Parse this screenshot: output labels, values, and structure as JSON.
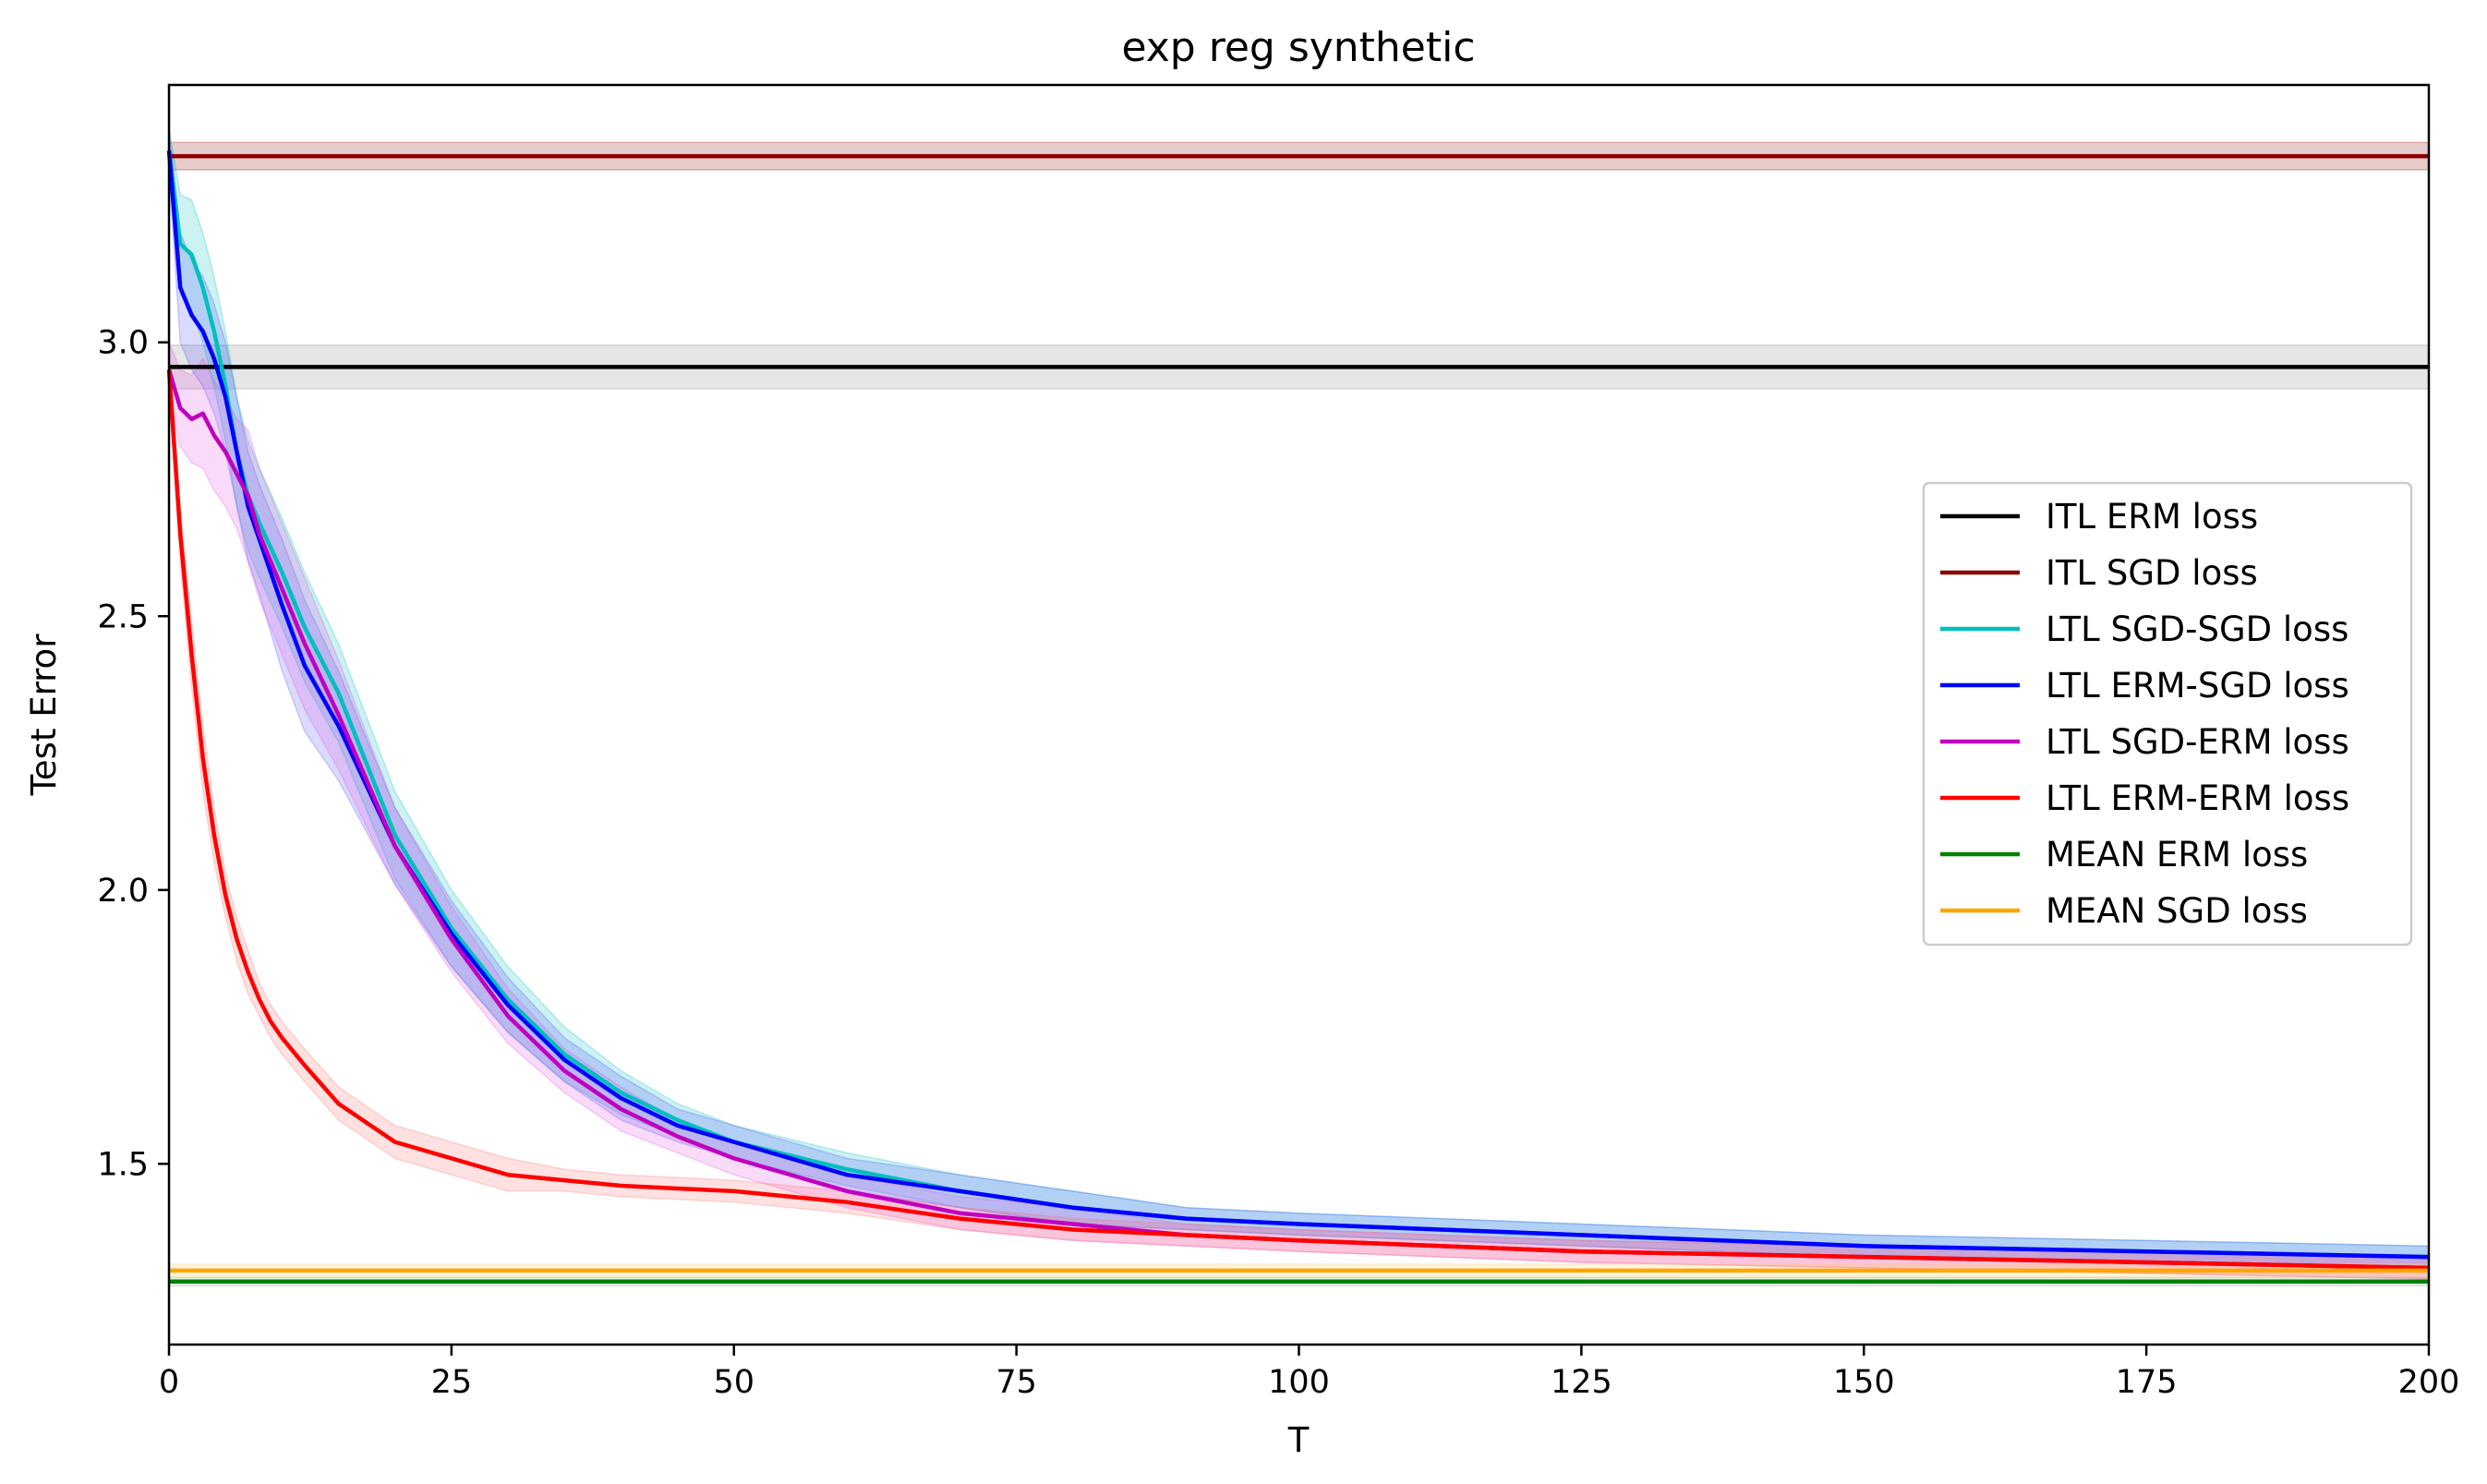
{
  "chart_data": {
    "type": "line",
    "title": "exp reg synthetic",
    "xlabel": "T",
    "ylabel": "Test Error",
    "xlim": [
      0,
      200
    ],
    "ylim": [
      1.17,
      3.47
    ],
    "xticks": [
      "0",
      "25",
      "50",
      "75",
      "100",
      "125",
      "150",
      "175",
      "200"
    ],
    "yticks": [
      "1.5",
      "2.0",
      "2.5",
      "3.0"
    ],
    "grid": false,
    "legend_position": "center-right",
    "series": [
      {
        "name": "ITL ERM loss",
        "color": "#000000",
        "band_color": "#808080",
        "x": [
          0,
          200
        ],
        "values": [
          2.955,
          2.955
        ],
        "band": [
          0.04,
          0.04
        ]
      },
      {
        "name": "ITL SGD loss",
        "color": "#8b0000",
        "band_color": "#8b0000",
        "x": [
          0,
          200
        ],
        "values": [
          3.34,
          3.34
        ],
        "band": [
          0.025,
          0.025
        ]
      },
      {
        "name": "LTL SGD-SGD loss",
        "color": "#00bfbf",
        "band_color": "#00bfbf",
        "x": [
          0,
          1,
          2,
          3,
          4,
          5,
          6,
          7,
          8,
          10,
          12,
          15,
          20,
          25,
          30,
          35,
          40,
          45,
          50,
          60,
          70,
          80,
          90,
          100,
          125,
          150,
          175,
          200
        ],
        "values": [
          3.35,
          3.18,
          3.16,
          3.1,
          3.02,
          2.92,
          2.8,
          2.72,
          2.67,
          2.58,
          2.48,
          2.36,
          2.1,
          1.93,
          1.8,
          1.7,
          1.63,
          1.58,
          1.54,
          1.49,
          1.45,
          1.42,
          1.4,
          1.39,
          1.37,
          1.35,
          1.34,
          1.33
        ],
        "band": [
          0.04,
          0.09,
          0.1,
          0.1,
          0.1,
          0.1,
          0.1,
          0.1,
          0.1,
          0.1,
          0.1,
          0.09,
          0.08,
          0.07,
          0.06,
          0.05,
          0.04,
          0.03,
          0.03,
          0.03,
          0.03,
          0.03,
          0.02,
          0.02,
          0.02,
          0.02,
          0.02,
          0.02
        ]
      },
      {
        "name": "LTL ERM-SGD loss",
        "color": "#0000ff",
        "band_color": "#4a4aff",
        "x": [
          0,
          1,
          2,
          3,
          4,
          5,
          6,
          7,
          8,
          10,
          12,
          15,
          20,
          25,
          30,
          35,
          40,
          45,
          50,
          60,
          70,
          80,
          90,
          100,
          125,
          150,
          175,
          200
        ],
        "values": [
          3.35,
          3.1,
          3.05,
          3.02,
          2.97,
          2.9,
          2.8,
          2.7,
          2.64,
          2.52,
          2.41,
          2.3,
          2.08,
          1.92,
          1.79,
          1.69,
          1.62,
          1.57,
          1.54,
          1.48,
          1.45,
          1.42,
          1.4,
          1.39,
          1.37,
          1.35,
          1.34,
          1.33
        ],
        "band": [
          0.04,
          0.1,
          0.1,
          0.1,
          0.1,
          0.1,
          0.1,
          0.1,
          0.1,
          0.12,
          0.12,
          0.1,
          0.07,
          0.06,
          0.05,
          0.04,
          0.04,
          0.03,
          0.03,
          0.03,
          0.03,
          0.03,
          0.02,
          0.02,
          0.02,
          0.02,
          0.02,
          0.02
        ]
      },
      {
        "name": "LTL SGD-ERM loss",
        "color": "#bf00bf",
        "band_color": "#e14ae1",
        "x": [
          0,
          1,
          2,
          3,
          4,
          5,
          6,
          7,
          8,
          10,
          12,
          15,
          20,
          25,
          30,
          35,
          40,
          45,
          50,
          60,
          70,
          80,
          90,
          100,
          125,
          150,
          175,
          200
        ],
        "values": [
          2.95,
          2.88,
          2.86,
          2.87,
          2.83,
          2.8,
          2.76,
          2.72,
          2.65,
          2.55,
          2.45,
          2.32,
          2.08,
          1.91,
          1.77,
          1.67,
          1.6,
          1.55,
          1.51,
          1.45,
          1.41,
          1.39,
          1.37,
          1.36,
          1.34,
          1.33,
          1.32,
          1.31
        ],
        "band": [
          0.05,
          0.07,
          0.08,
          0.1,
          0.1,
          0.1,
          0.1,
          0.12,
          0.12,
          0.12,
          0.12,
          0.1,
          0.07,
          0.06,
          0.05,
          0.04,
          0.04,
          0.03,
          0.03,
          0.03,
          0.03,
          0.03,
          0.02,
          0.02,
          0.02,
          0.02,
          0.02,
          0.02
        ]
      },
      {
        "name": "LTL ERM-ERM loss",
        "color": "#ff0000",
        "band_color": "#ff6a6a",
        "x": [
          0,
          1,
          2,
          3,
          4,
          5,
          6,
          7,
          8,
          9,
          10,
          12,
          15,
          20,
          25,
          30,
          35,
          40,
          45,
          50,
          55,
          60,
          70,
          80,
          90,
          100,
          125,
          150,
          175,
          200
        ],
        "values": [
          2.95,
          2.65,
          2.43,
          2.24,
          2.1,
          1.99,
          1.91,
          1.85,
          1.8,
          1.76,
          1.73,
          1.68,
          1.61,
          1.54,
          1.51,
          1.48,
          1.47,
          1.46,
          1.455,
          1.45,
          1.44,
          1.43,
          1.4,
          1.38,
          1.37,
          1.36,
          1.34,
          1.33,
          1.32,
          1.31
        ],
        "band": [
          0.03,
          0.05,
          0.06,
          0.06,
          0.05,
          0.04,
          0.04,
          0.04,
          0.03,
          0.03,
          0.03,
          0.03,
          0.03,
          0.03,
          0.03,
          0.03,
          0.02,
          0.02,
          0.02,
          0.02,
          0.02,
          0.02,
          0.02,
          0.02,
          0.02,
          0.02,
          0.02,
          0.02,
          0.02,
          0.02
        ]
      },
      {
        "name": "MEAN ERM loss",
        "color": "#008000",
        "band_color": "#7fbf7f",
        "x": [
          0,
          200
        ],
        "values": [
          1.285,
          1.285
        ],
        "band": [
          0.008,
          0.008
        ]
      },
      {
        "name": "MEAN SGD loss",
        "color": "#ffa500",
        "band_color": "#ffcc66",
        "x": [
          0,
          200
        ],
        "values": [
          1.305,
          1.305
        ],
        "band": [
          0.012,
          0.012
        ]
      }
    ]
  }
}
